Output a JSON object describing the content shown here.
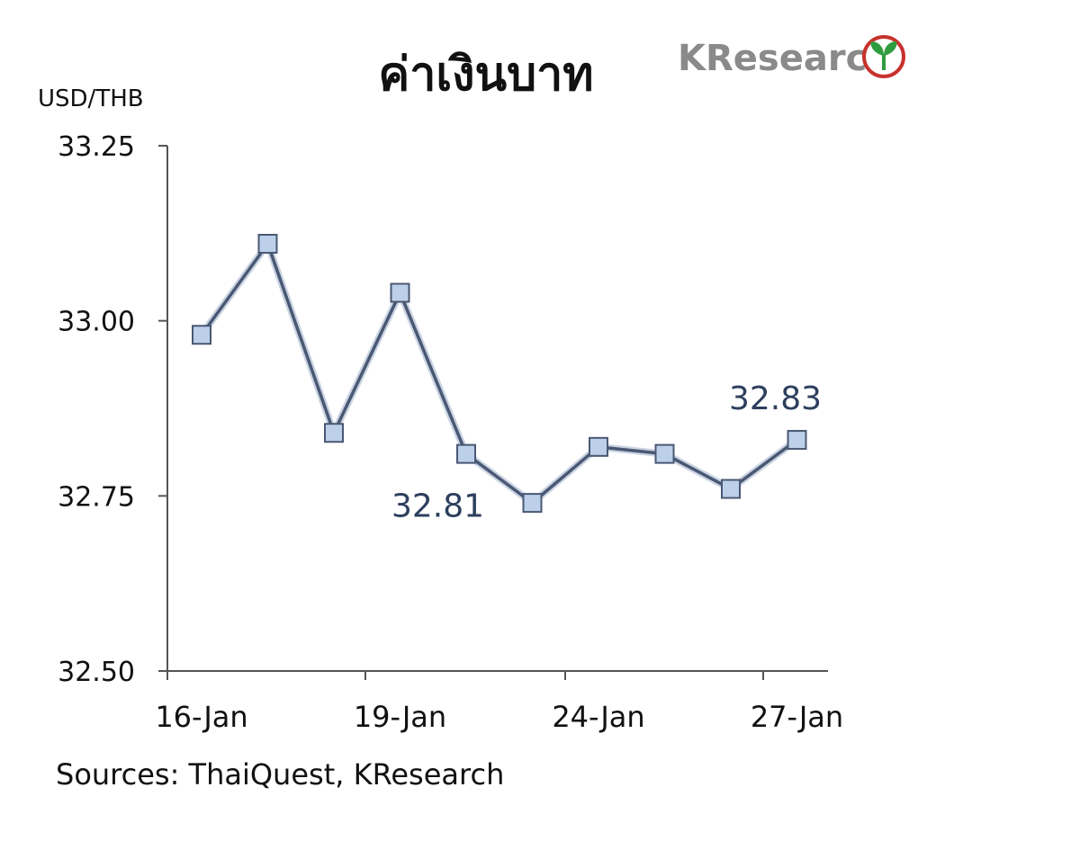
{
  "brand": {
    "logo_k": "K",
    "logo_rest": "Research"
  },
  "footer": {
    "source": "Sources: ThaiQuest, KResearch"
  },
  "colors": {
    "line": "#4a5873",
    "marker_fill": "#bcd0ea",
    "marker_stroke": "#4a5873",
    "axis": "#555555",
    "label": "#2d3f5e",
    "logo_red": "#c8322c",
    "logo_green": "#2e9c3f"
  },
  "chart_data": {
    "type": "line",
    "title": "ค่าเงินบาท",
    "ylabel": "USD/THB",
    "xlabel": "",
    "ylim": [
      32.5,
      33.25
    ],
    "yticks": [
      "32.50",
      "32.75",
      "33.00",
      "33.25"
    ],
    "ytick_values": [
      32.5,
      32.75,
      33.0,
      33.25
    ],
    "xtick_labels": [
      "16-Jan",
      "19-Jan",
      "24-Jan",
      "27-Jan"
    ],
    "xtick_indices": [
      0,
      3,
      6,
      9
    ],
    "series": [
      {
        "values": [
          32.98,
          33.11,
          32.84,
          33.04,
          32.81,
          32.74,
          32.82,
          32.81,
          32.76,
          32.83
        ]
      }
    ],
    "data_labels": [
      {
        "index": 4,
        "text": "32.81"
      },
      {
        "index": 9,
        "text": "32.83"
      }
    ],
    "grid": false,
    "source": "Sources: ThaiQuest, KResearch"
  }
}
